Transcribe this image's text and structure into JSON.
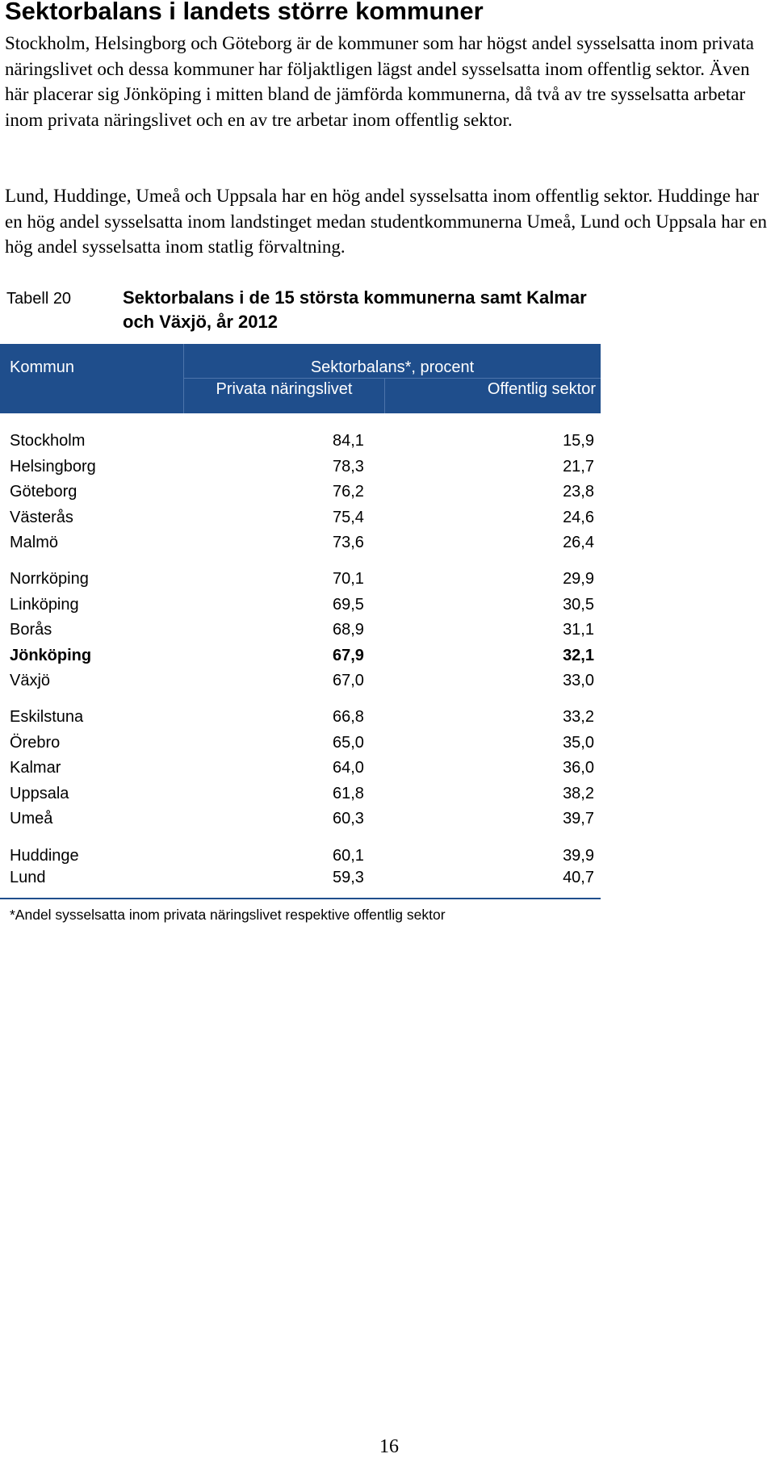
{
  "heading": "Sektorbalans i landets större kommuner",
  "paragraphs": [
    "Stockholm, Helsingborg och Göteborg är de kommuner som har högst andel sysselsatta inom privata näringslivet och dessa kommuner har följaktligen lägst andel sysselsatta inom offentlig sektor. Även här placerar sig Jönköping i mitten bland de jämförda kommunerna, då två av tre sysselsatta arbetar inom privata näringslivet och en av tre arbetar inom offentlig sektor.",
    "Lund, Huddinge, Umeå och Uppsala har en hög andel sysselsatta inom offentlig sektor. Huddinge har en hög andel sysselsatta inom landstinget medan studentkommunerna Umeå, Lund och Uppsala har en hög andel sysselsatta inom statlig förvaltning."
  ],
  "table": {
    "label": "Tabell 20",
    "title": "Sektorbalans i de 15 största kommunerna samt Kalmar och Växjö, år 2012",
    "headers": {
      "kommun": "Kommun",
      "group": "Sektorbalans*, procent",
      "privat": "Privata näringslivet",
      "offentlig": "Offentlig sektor"
    },
    "rows": [
      {
        "kommun": "Stockholm",
        "privat": "84,1",
        "offentlig": "15,9"
      },
      {
        "kommun": "Helsingborg",
        "privat": "78,3",
        "offentlig": "21,7"
      },
      {
        "kommun": "Göteborg",
        "privat": "76,2",
        "offentlig": "23,8"
      },
      {
        "kommun": "Västerås",
        "privat": "75,4",
        "offentlig": "24,6"
      },
      {
        "kommun": "Malmö",
        "privat": "73,6",
        "offentlig": "26,4"
      },
      {
        "kommun": "Norrköping",
        "privat": "70,1",
        "offentlig": "29,9"
      },
      {
        "kommun": "Linköping",
        "privat": "69,5",
        "offentlig": "30,5"
      },
      {
        "kommun": "Borås",
        "privat": "68,9",
        "offentlig": "31,1"
      },
      {
        "kommun": "Jönköping",
        "privat": "67,9",
        "offentlig": "32,1",
        "highlight": true
      },
      {
        "kommun": "Växjö",
        "privat": "67,0",
        "offentlig": "33,0"
      },
      {
        "kommun": "Eskilstuna",
        "privat": "66,8",
        "offentlig": "33,2"
      },
      {
        "kommun": "Örebro",
        "privat": "65,0",
        "offentlig": "35,0"
      },
      {
        "kommun": "Kalmar",
        "privat": "64,0",
        "offentlig": "36,0"
      },
      {
        "kommun": "Uppsala",
        "privat": "61,8",
        "offentlig": "38,2"
      },
      {
        "kommun": "Umeå",
        "privat": "60,3",
        "offentlig": "39,7"
      },
      {
        "kommun": "Huddinge",
        "privat": "60,1",
        "offentlig": "39,9"
      },
      {
        "kommun": "Lund",
        "privat": "59,3",
        "offentlig": "40,7"
      }
    ],
    "footnote": "*Andel sysselsatta inom privata näringslivet respektive offentlig sektor",
    "header_color": "#1f4e8c"
  },
  "page_number": "16"
}
